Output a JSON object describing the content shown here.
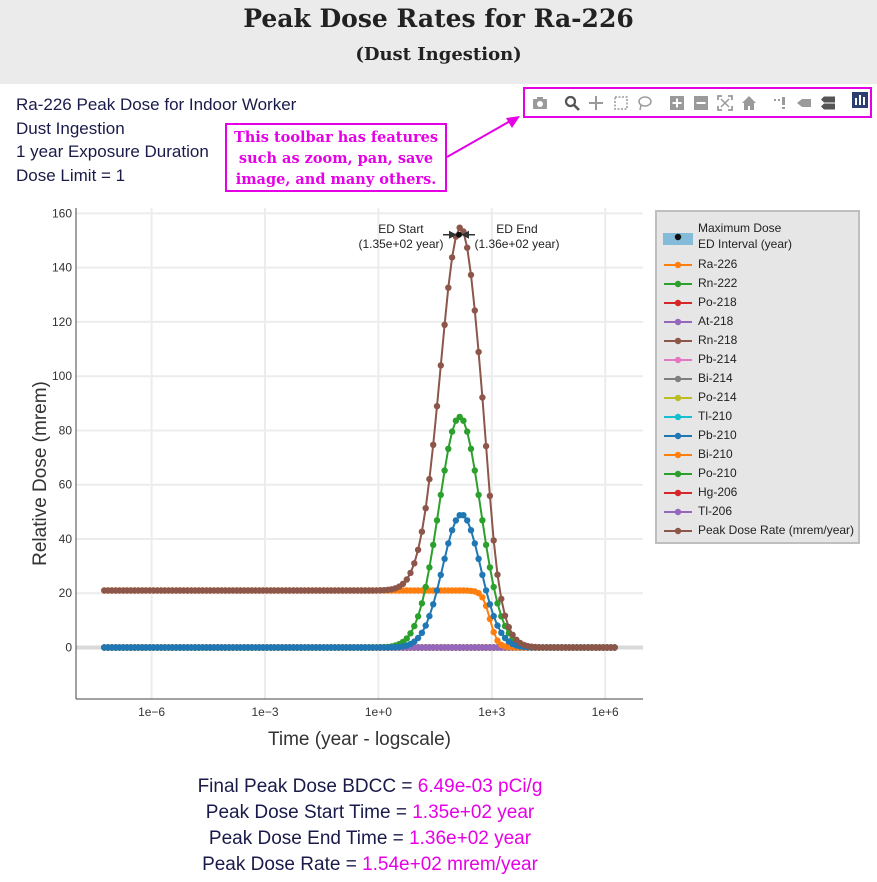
{
  "header": {
    "title": "Peak Dose Rates for Ra-226",
    "subtitle": "(Dust Ingestion)"
  },
  "info": {
    "line1": "Ra-226 Peak Dose for Indoor Worker",
    "line2": "Dust Ingestion",
    "line3": "1 year Exposure Duration",
    "line4": "Dose Limit = 1"
  },
  "toolbar": {
    "icons": [
      "camera-icon",
      "zoom-icon",
      "pan-icon",
      "box-select-icon",
      "lasso-select-icon",
      "zoom-in-icon",
      "zoom-out-icon",
      "autoscale-icon",
      "reset-axes-icon",
      "spike-lines-icon",
      "hover-closest-icon",
      "hover-compare-icon",
      "plotly-logo-icon"
    ]
  },
  "callout": {
    "text": "This toolbar has features such as zoom, pan, save image, and many others.",
    "color": "#e600e6"
  },
  "chart_data": {
    "type": "line",
    "xlabel": "Time (year - logscale)",
    "ylabel": "Relative Dose (mrem)",
    "x_scale": "log",
    "xlim": [
      1e-08,
      10000000.0
    ],
    "ylim": [
      -19,
      162
    ],
    "x_tick_labels": [
      "1e−6",
      "1e−3",
      "1e+0",
      "1e+3",
      "1e+6"
    ],
    "x_tick_values": [
      1e-06,
      0.001,
      1,
      1000,
      1000000
    ],
    "y_ticks": [
      0,
      20,
      40,
      60,
      80,
      100,
      120,
      140,
      160
    ],
    "grid": true,
    "legend_position": "right",
    "annotations": {
      "ed_start_label": "ED Start",
      "ed_start_value": "(1.35e+02 year)",
      "ed_end_label": "ED End",
      "ed_end_value": "(1.36e+02 year)"
    },
    "max_dose": {
      "x": 135.5,
      "y": 154,
      "name": "Maximum Dose",
      "interval_name": "ED Interval (year)"
    },
    "series_curves": [
      {
        "name": "Ra-226",
        "color": "#ff7f0e",
        "shape": "plateau",
        "plateau": 21,
        "fall_center_log10": 2.95,
        "fall_width": 0.4
      },
      {
        "name": "Rn-222",
        "color": "#2ca02c",
        "shape": "gauss",
        "peak": 85,
        "center_log10": 2.15,
        "sigma": 0.55
      },
      {
        "name": "Po-218",
        "color": "#d62728",
        "shape": "zero"
      },
      {
        "name": "At-218",
        "color": "#9467bd",
        "shape": "zero"
      },
      {
        "name": "Rn-218",
        "color": "#8c564b",
        "shape": "zero"
      },
      {
        "name": "Pb-214",
        "color": "#e377c2",
        "shape": "zero"
      },
      {
        "name": "Bi-214",
        "color": "#7f7f7f",
        "shape": "zero"
      },
      {
        "name": "Po-214",
        "color": "#bcbd22",
        "shape": "zero"
      },
      {
        "name": "Tl-210",
        "color": "#17becf",
        "shape": "zero"
      },
      {
        "name": "Pb-210",
        "color": "#1f77b4",
        "shape": "gauss",
        "peak": 49,
        "center_log10": 2.2,
        "sigma": 0.5
      },
      {
        "name": "Bi-210",
        "color": "#ff7f0e",
        "shape": "zero"
      },
      {
        "name": "Po-210",
        "color": "#2ca02c",
        "shape": "zero"
      },
      {
        "name": "Hg-206",
        "color": "#d62728",
        "shape": "zero"
      },
      {
        "name": "Tl-206",
        "color": "#9467bd",
        "shape": "zero"
      },
      {
        "name": "Peak Dose Rate (mrem/year)",
        "color": "#8c564b",
        "shape": "total"
      }
    ],
    "x_range_log10": [
      -7.25,
      6.25
    ],
    "points_per_series": 136
  },
  "legend": {
    "max_dose_label": "Maximum Dose",
    "interval_label": "ED Interval (year)"
  },
  "summary": {
    "bdcc_label": "Final Peak Dose BDCC = ",
    "bdcc_value": "6.49e-03 pCi/g",
    "start_label": "Peak Dose Start Time = ",
    "start_value": "1.35e+02 year",
    "end_label": "Peak Dose End Time = ",
    "end_value": "1.36e+02 year",
    "rate_label": "Peak Dose Rate = ",
    "rate_value": "1.54e+02 mrem/year"
  }
}
